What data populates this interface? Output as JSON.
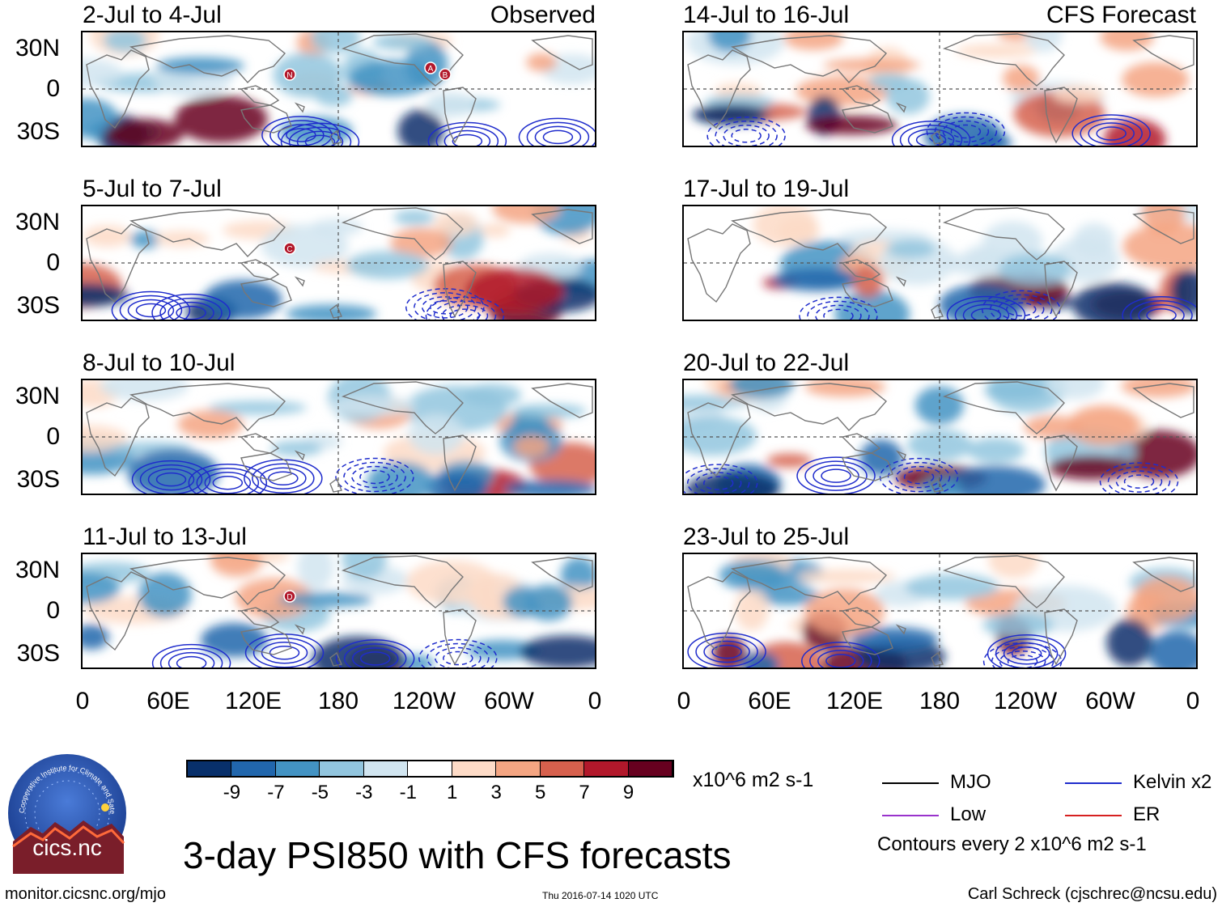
{
  "colors": {
    "shading": [
      "#08306b",
      "#2166ac",
      "#4393c3",
      "#92c5de",
      "#d1e5f0",
      "#ffffff",
      "#fddbc7",
      "#f4a582",
      "#d6604d",
      "#b2182b",
      "#67001f"
    ],
    "mjo": "#000000",
    "kelvin": "#1f2ccc",
    "low": "#9933cc",
    "er": "#d62020",
    "land": "#777777"
  },
  "y_labels": [
    "30N",
    "0",
    "30S"
  ],
  "x_labels": [
    "0",
    "60E",
    "120E",
    "180",
    "120W",
    "60W",
    "0"
  ],
  "headers": {
    "observed": "Observed",
    "forecast": "CFS Forecast"
  },
  "panels": [
    {
      "title": "2-Jul to 4-Jul",
      "storms": [
        "N",
        "A",
        "B"
      ]
    },
    {
      "title": "14-Jul to 16-Jul",
      "storms": []
    },
    {
      "title": "5-Jul to 7-Jul",
      "storms": [
        "C"
      ]
    },
    {
      "title": "17-Jul to 19-Jul",
      "storms": []
    },
    {
      "title": "8-Jul to 10-Jul",
      "storms": []
    },
    {
      "title": "20-Jul to 22-Jul",
      "storms": []
    },
    {
      "title": "11-Jul to 13-Jul",
      "storms": [
        "D"
      ]
    },
    {
      "title": "23-Jul to 25-Jul",
      "storms": []
    }
  ],
  "colorbar": {
    "labels": [
      "-9",
      "-7",
      "-5",
      "-3",
      "-1",
      "1",
      "3",
      "5",
      "7",
      "9"
    ],
    "units": "x10^6 m2 s-1"
  },
  "legend": {
    "mjo": "MJO",
    "kelvin": "Kelvin x2",
    "low": "Low",
    "er": "ER",
    "contours_note": "Contours every 2 x10^6 m2 s-1"
  },
  "logo": {
    "arc_text": "Cooperative Institute for Climate and Satellites",
    "name": "cics.nc"
  },
  "main_title": "3-day PSI850 with CFS forecasts",
  "footer": {
    "url": "monitor.cicsnc.org/mjo",
    "timestamp": "Thu 2016-07-14 1020 UTC",
    "credit": "Carl Schreck (cjschrec@ncsu.edu)"
  }
}
